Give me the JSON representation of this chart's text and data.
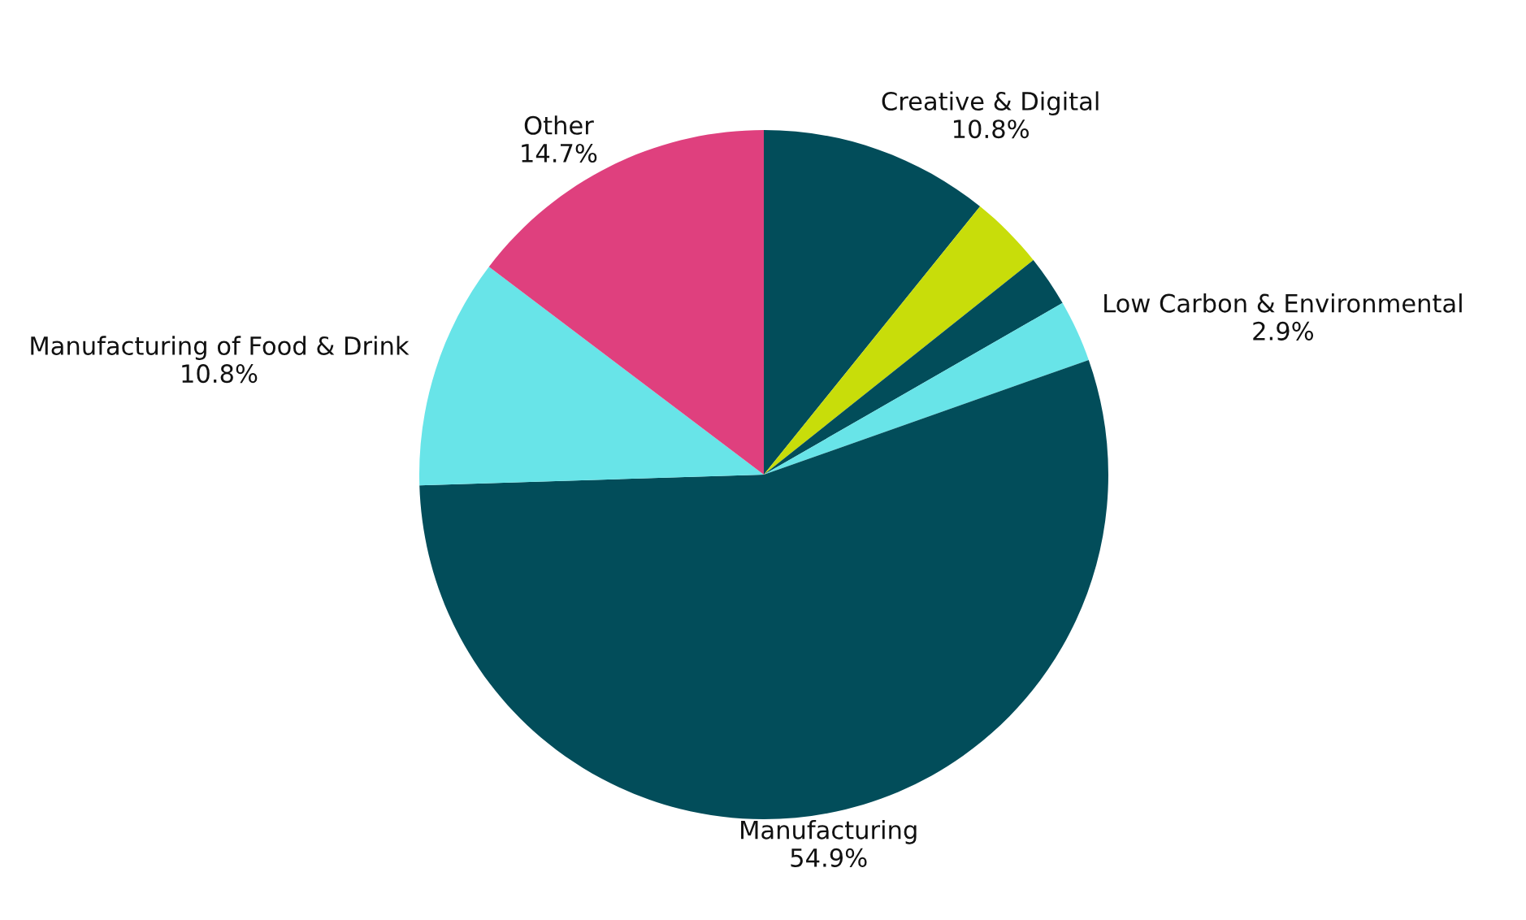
{
  "chart_data": {
    "type": "pie",
    "categories": [
      "Creative & Digital",
      null,
      null,
      "Low Carbon & Environmental",
      "Manufacturing",
      "Manufacturing of Food & Drink",
      "Other"
    ],
    "values": [
      10.8,
      3.5,
      2.4,
      2.9,
      54.9,
      10.8,
      14.7
    ],
    "value_labels": [
      "10.8%",
      null,
      null,
      "2.9%",
      "54.9%",
      "10.8%",
      "14.7%"
    ],
    "colors": [
      "#024d5a",
      "#c8dd0a",
      "#024d5a",
      "#68e4e8",
      "#024d5a",
      "#68e4e8",
      "#df407e"
    ]
  }
}
